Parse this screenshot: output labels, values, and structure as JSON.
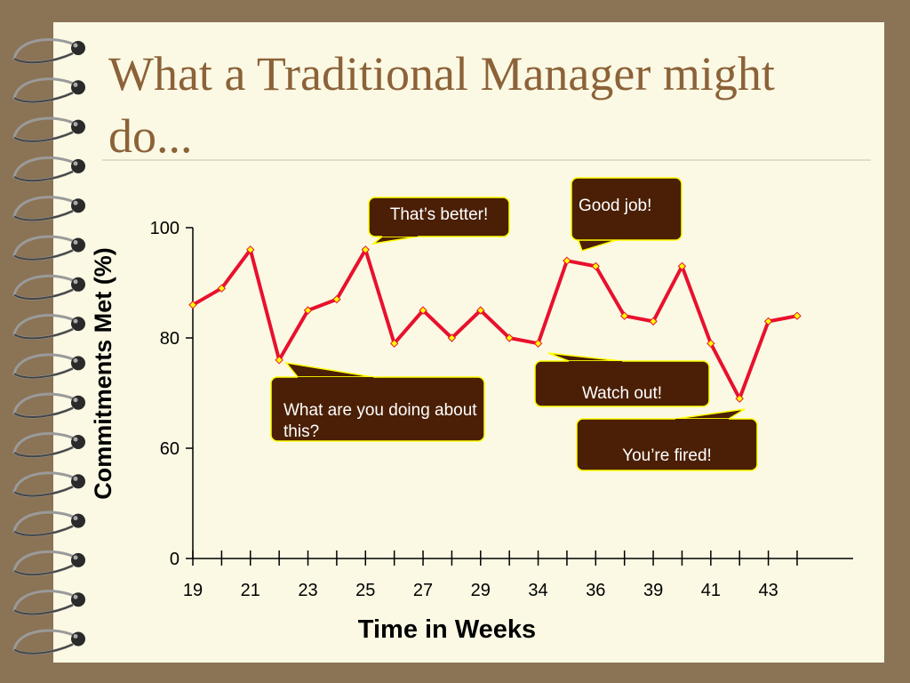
{
  "chart_data": {
    "type": "line",
    "title": "What a Traditional Manager might do...",
    "x_label": "Time in Weeks",
    "y_label": "Commitments Met (%)",
    "categories": [
      "19",
      null,
      "21",
      null,
      "23",
      null,
      "25",
      null,
      "27",
      null,
      "29",
      null,
      "34",
      null,
      "36",
      null,
      "39",
      null,
      "41",
      null,
      "43",
      null
    ],
    "series": [
      {
        "name": "Commitments Met",
        "color": "#e8112d",
        "marker_color": "#ffff00",
        "values": [
          86,
          89,
          96,
          76,
          85,
          87,
          96,
          79,
          85,
          80,
          85,
          80,
          79,
          94,
          93,
          84,
          83,
          93,
          79,
          69,
          83,
          84
        ]
      }
    ],
    "ylim": [
      0,
      100
    ],
    "yticks": [
      0,
      60,
      80,
      100
    ],
    "grid": false,
    "annotations": [
      "That’s better!",
      "Good job!",
      "What are you doing about this?",
      "Watch out!",
      "You’re fired!"
    ]
  }
}
